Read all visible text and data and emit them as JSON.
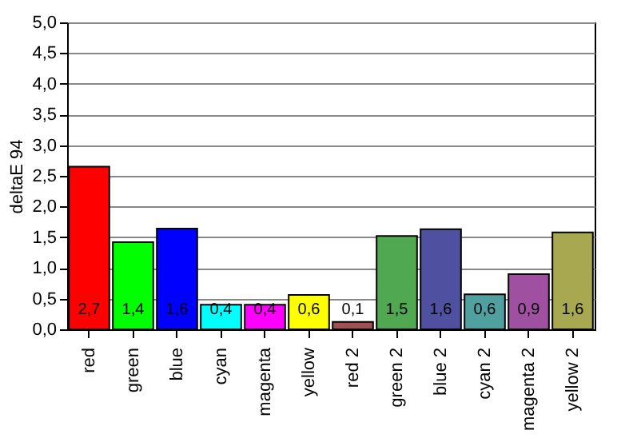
{
  "chart_data": {
    "type": "bar",
    "ylabel": "deltaE 94",
    "categories": [
      "red",
      "green",
      "blue",
      "cyan",
      "magenta",
      "yellow",
      "red 2",
      "green 2",
      "blue 2",
      "cyan 2",
      "magenta 2",
      "yellow 2"
    ],
    "values": [
      2.65,
      1.42,
      1.64,
      0.4,
      0.4,
      0.56,
      0.12,
      1.52,
      1.63,
      0.57,
      0.9,
      1.58
    ],
    "value_labels": [
      "2,7",
      "1,4",
      "1,6",
      "0,4",
      "0,4",
      "0,6",
      "0,1",
      "1,5",
      "1,6",
      "0,6",
      "0,9",
      "1,6"
    ],
    "colors": [
      "#ff0000",
      "#00ff00",
      "#0000ff",
      "#00ffff",
      "#ff00ff",
      "#ffff00",
      "#a05050",
      "#50a850",
      "#5050a0",
      "#50a0a0",
      "#a050a0",
      "#a8a850"
    ],
    "ylim": [
      0,
      5
    ],
    "yticks": [
      {
        "value": 0,
        "label": "0,0"
      },
      {
        "value": 0.5,
        "label": "0,5"
      },
      {
        "value": 1,
        "label": "1,0"
      },
      {
        "value": 1.5,
        "label": "1,5"
      },
      {
        "value": 2,
        "label": "2,0"
      },
      {
        "value": 2.5,
        "label": "2,5"
      },
      {
        "value": 3,
        "label": "3,0"
      },
      {
        "value": 3.5,
        "label": "3,5"
      },
      {
        "value": 4,
        "label": "4,0"
      },
      {
        "value": 4.5,
        "label": "4,5"
      },
      {
        "value": 5,
        "label": "5,0"
      }
    ],
    "grid": true
  }
}
